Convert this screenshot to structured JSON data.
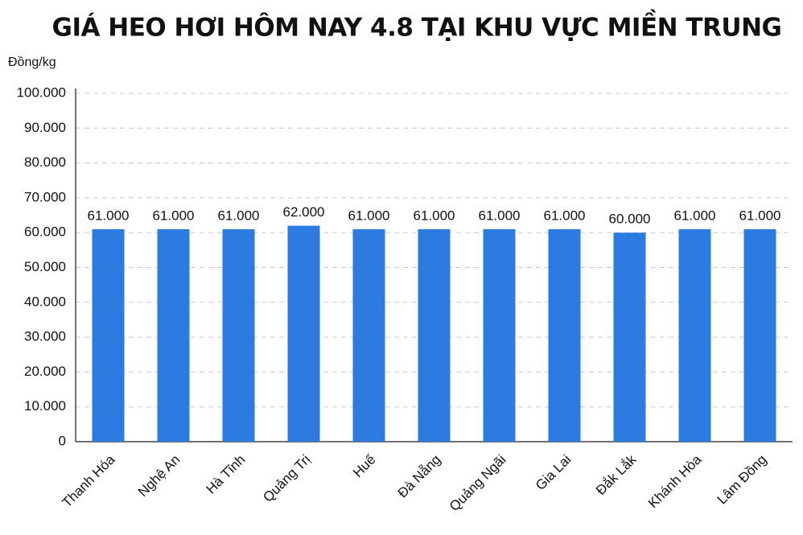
{
  "chart_data": {
    "type": "bar",
    "title": "GIÁ HEO HƠI HÔM NAY 4.8 TẠI KHU VỰC MIỀN TRUNG",
    "y_label": "Đồng/kg",
    "categories": [
      "Thanh Hóa",
      "Nghệ An",
      "Hà Tĩnh",
      "Quảng Trị",
      "Huế",
      "Đà Nẵng",
      "Quảng Ngãi",
      "Gia Lai",
      "Đắk Lắk",
      "Khánh Hòa",
      "Lâm Đồng"
    ],
    "values": [
      61000,
      61000,
      61000,
      62000,
      61000,
      61000,
      61000,
      61000,
      60000,
      61000,
      61000
    ],
    "value_labels": [
      "61.000",
      "61.000",
      "61.000",
      "62.000",
      "61.000",
      "61.000",
      "61.000",
      "61.000",
      "60.000",
      "61.000",
      "61.000"
    ],
    "color": "#2b7be0",
    "ylim": [
      0,
      100000
    ],
    "yticks": [
      0,
      {
        "value": 10000,
        "label": "10.000"
      },
      {
        "value": 20000,
        "label": "20.000"
      },
      {
        "value": 30000,
        "label": "30.000"
      },
      {
        "value": 40000,
        "label": "40.000"
      },
      {
        "value": 50000,
        "label": "50.000"
      },
      {
        "value": 60000,
        "label": "60.000"
      },
      {
        "value": 70000,
        "label": "70.000"
      },
      {
        "value": 80000,
        "label": "80.000"
      },
      {
        "value": 90000,
        "label": "90.000"
      },
      {
        "value": 100000,
        "label": "100.000"
      }
    ],
    "grid": true
  }
}
